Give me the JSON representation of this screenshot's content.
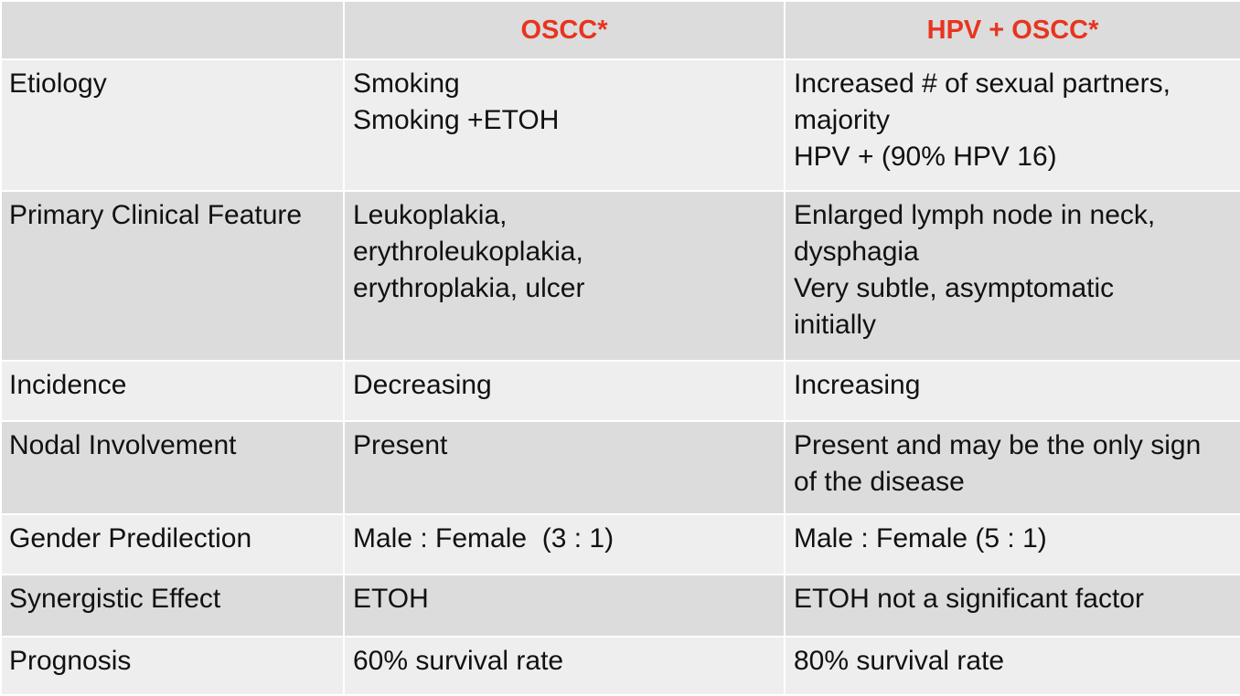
{
  "headers": [
    "",
    "OSCC*",
    "HPV + OSCC*"
  ],
  "rows": [
    {
      "label": "Etiology",
      "oscc": [
        "Smoking",
        "Smoking +ETOH"
      ],
      "hpv": [
        "Increased # of sexual partners,",
        "majority",
        "HPV + (90% HPV 16)"
      ]
    },
    {
      "label": "Primary Clinical Feature",
      "oscc": [
        "Leukoplakia,",
        "erythroleukoplakia,",
        "erythroplakia, ulcer"
      ],
      "hpv": [
        "Enlarged lymph node in neck,",
        "dysphagia",
        "Very subtle, asymptomatic",
        "initially"
      ]
    },
    {
      "label": "Incidence",
      "oscc": [
        "Decreasing"
      ],
      "hpv": [
        "Increasing"
      ]
    },
    {
      "label": "Nodal Involvement",
      "oscc": [
        "Present"
      ],
      "hpv": [
        "Present and may be the only sign",
        "of the disease"
      ]
    },
    {
      "label": "Gender Predilection",
      "oscc": [
        "Male : Female  (3 : 1)"
      ],
      "hpv": [
        "Male : Female (5 : 1)"
      ]
    },
    {
      "label": "Synergistic Effect",
      "oscc": [
        "ETOH"
      ],
      "hpv": [
        "ETOH not a significant factor"
      ]
    },
    {
      "label": "Prognosis",
      "oscc": [
        "60% survival rate"
      ],
      "hpv": [
        "80% survival rate"
      ]
    }
  ],
  "colors": {
    "header_text": "#e8341f",
    "header_bg": "#dcdcdc",
    "row_light": "#eeeeee",
    "row_dark": "#dcdcdc"
  }
}
